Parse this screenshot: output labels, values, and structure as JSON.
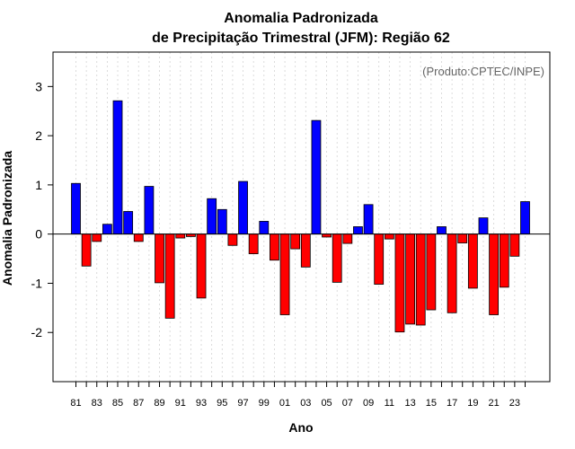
{
  "chart_data": {
    "type": "bar",
    "title_line1": "Anomalia Padronizada",
    "title_line2": "de Precipitação Trimestral (JFM): Região 62",
    "xlabel": "Ano",
    "ylabel": "Anomalia Padronizada",
    "credit": "(Produto:CPTEC/INPE)",
    "ylim": [
      -3,
      3.7
    ],
    "yticks": [
      -2,
      -1,
      0,
      1,
      2,
      3
    ],
    "categories": [
      "81",
      "82",
      "83",
      "84",
      "85",
      "86",
      "87",
      "88",
      "89",
      "90",
      "91",
      "92",
      "93",
      "94",
      "95",
      "96",
      "97",
      "98",
      "99",
      "00",
      "01",
      "02",
      "03",
      "04",
      "05",
      "06",
      "07",
      "08",
      "09",
      "10",
      "11",
      "12",
      "13",
      "14",
      "15",
      "16",
      "17",
      "18",
      "19",
      "20",
      "21",
      "22",
      "23",
      "24"
    ],
    "xtick_labels": [
      "81",
      "83",
      "85",
      "87",
      "89",
      "91",
      "93",
      "95",
      "97",
      "99",
      "01",
      "03",
      "05",
      "07",
      "09",
      "11",
      "13",
      "15",
      "17",
      "19",
      "21",
      "23"
    ],
    "values": [
      1.03,
      -0.65,
      -0.15,
      0.2,
      2.71,
      0.46,
      -0.15,
      0.97,
      -0.99,
      -1.71,
      -0.08,
      -0.05,
      -1.3,
      0.72,
      0.5,
      -0.23,
      1.07,
      -0.4,
      0.26,
      -0.53,
      -1.64,
      -0.3,
      -0.67,
      2.31,
      -0.06,
      -0.98,
      -0.19,
      0.15,
      0.6,
      -1.02,
      -0.1,
      -1.99,
      -1.83,
      -1.85,
      -1.54,
      0.15,
      -1.6,
      -0.18,
      -1.1,
      0.33,
      -1.64,
      -1.08,
      -0.45,
      0.66
    ],
    "colors": {
      "positive": "#0000ff",
      "negative": "#ff0000",
      "grid": "#d3d3d3"
    }
  }
}
